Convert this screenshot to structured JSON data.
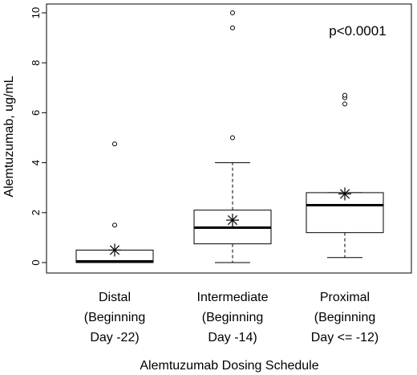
{
  "chart_data": {
    "type": "boxplot",
    "xlabel": "Alemtuzumab Dosing Schedule",
    "ylabel": "Alemtuzumab, ug/mL",
    "ylim": [
      0,
      10
    ],
    "yticks": [
      0,
      2,
      4,
      6,
      8,
      10
    ],
    "annotation": "p<0.0001",
    "groups": [
      {
        "label_lines": [
          "Distal",
          "(Beginning",
          "Day -22)"
        ],
        "whisker_low": 0.0,
        "q1": 0.0,
        "median": 0.05,
        "q3": 0.5,
        "whisker_high": 0.5,
        "mean": 0.5,
        "outliers": [
          1.5,
          4.75
        ]
      },
      {
        "label_lines": [
          "Intermediate",
          "(Beginning",
          "Day -14)"
        ],
        "whisker_low": 0.0,
        "q1": 0.75,
        "median": 1.4,
        "q3": 2.1,
        "whisker_high": 4.0,
        "mean": 1.7,
        "outliers": [
          5.0,
          9.4,
          10.0
        ]
      },
      {
        "label_lines": [
          "Proximal",
          "(Beginning",
          "Day <= -12)"
        ],
        "whisker_low": 0.2,
        "q1": 1.2,
        "median": 2.3,
        "q3": 2.8,
        "whisker_high": 2.8,
        "mean": 2.75,
        "outliers": [
          6.35,
          6.6,
          6.7
        ]
      }
    ]
  }
}
